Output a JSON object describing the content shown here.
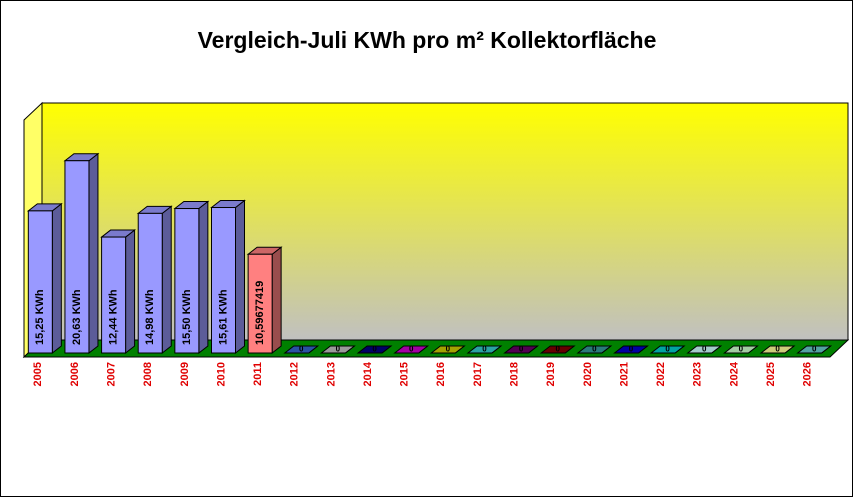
{
  "chart_data": {
    "type": "bar3d",
    "title": "Vergleich-Juli KWh pro m² Kollektorfläche",
    "categories": [
      "2005",
      "2006",
      "2007",
      "2008",
      "2009",
      "2010",
      "2011",
      "2012",
      "2013",
      "2014",
      "2015",
      "2016",
      "2017",
      "2018",
      "2019",
      "2020",
      "2021",
      "2022",
      "2023",
      "2024",
      "2025",
      "2026"
    ],
    "values": [
      15.25,
      20.63,
      12.44,
      14.98,
      15.5,
      15.61,
      10.59677419,
      0,
      0,
      0,
      0,
      0,
      0,
      0,
      0,
      0,
      0,
      0,
      0,
      0,
      0,
      0
    ],
    "value_labels": [
      "15,25 KWh",
      "20,63 KWh",
      "12,44 KWh",
      "14,98 KWh",
      "15,50 KWh",
      "15,61 KWh",
      "10,59677419",
      "0",
      "0",
      "0",
      "0",
      "0",
      "0",
      "0",
      "0",
      "0",
      "0",
      "0",
      "0",
      "0",
      "0",
      "0"
    ],
    "colors": [
      "#9999ff",
      "#9999ff",
      "#9999ff",
      "#9999ff",
      "#9999ff",
      "#9999ff",
      "#ff8080",
      "#3366cc",
      "#c0c0c0",
      "#000080",
      "#cc00cc",
      "#cccc00",
      "#33cccc",
      "#660066",
      "#800000",
      "#339999",
      "#0000cc",
      "#00cccc",
      "#ccffff",
      "#ccffcc",
      "#ffff99",
      "#66cccc"
    ],
    "ylim": [
      0,
      25
    ]
  }
}
